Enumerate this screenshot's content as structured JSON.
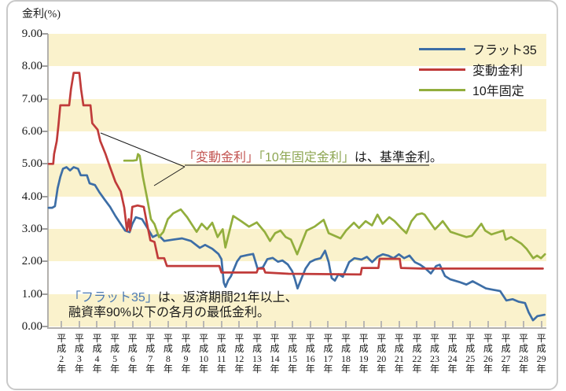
{
  "y_axis": {
    "title": "金利(%)",
    "tick_labels": [
      "9.00",
      "8.00",
      "7.00",
      "6.00",
      "5.00",
      "4.00",
      "3.00",
      "2.00",
      "1.00",
      "0.00"
    ],
    "min": 0,
    "max": 9
  },
  "x_axis": {
    "labels": [
      "平成2年",
      "平成3年",
      "平成4年",
      "平成5年",
      "平成6年",
      "平成7年",
      "平成8年",
      "平成9年",
      "平成10年",
      "平成11年",
      "平成12年",
      "平成13年",
      "平成14年",
      "平成15年",
      "平成16年",
      "平成17年",
      "平成18年",
      "平成19年",
      "平成20年",
      "平成21年",
      "平成22年",
      "平成23年",
      "平成24年",
      "平成25年",
      "平成26年",
      "平成27年",
      "平成28年",
      "平成29年"
    ]
  },
  "legend": {
    "items": [
      {
        "label": "フラット35",
        "color": "#3d6ea6"
      },
      {
        "label": "変動金利",
        "color": "#c03b3a"
      },
      {
        "label": "10年固定",
        "color": "#92ae3d"
      }
    ]
  },
  "annotations": {
    "standard_rate_note": {
      "parts": [
        {
          "text": "「変動金利」",
          "color": "#c25350"
        },
        {
          "text": "「10年固定金利」",
          "color": "#8ca550"
        },
        {
          "text": "は、基準金利。",
          "color": "#1a1a1a"
        }
      ]
    },
    "flat35_note": {
      "line1_parts": [
        {
          "text": "「フラット35」",
          "color": "#4b79b3"
        },
        {
          "text": "は、返済期間21年以上、",
          "color": "#1a1a1a"
        }
      ],
      "line2": "融資率90%以下の各月の最低金利。"
    }
  },
  "colors": {
    "band_cream": "#faf2cc",
    "band_white": "#ffffff",
    "axis": "#b3b1ad",
    "frame": "#c9c9c9",
    "leader_line": "#1a1a1a"
  },
  "chart_data": {
    "type": "line",
    "ylabel": "金利(%)",
    "ylim": [
      0,
      9
    ],
    "y_tick_step": 1,
    "grid": false,
    "background": "alternating cream/white horizontal bands per 1.00%",
    "legend_position": "top-right",
    "x_unit": "years since 平成2年1月 (0 = 平成2年, 28 = end of 平成29年)",
    "x_categories": [
      "平成2年",
      "平成3年",
      "平成4年",
      "平成5年",
      "平成6年",
      "平成7年",
      "平成8年",
      "平成9年",
      "平成10年",
      "平成11年",
      "平成12年",
      "平成13年",
      "平成14年",
      "平成15年",
      "平成16年",
      "平成17年",
      "平成18年",
      "平成19年",
      "平成20年",
      "平成21年",
      "平成22年",
      "平成23年",
      "平成24年",
      "平成25年",
      "平成26年",
      "平成27年",
      "平成28年",
      "平成29年"
    ],
    "series": [
      {
        "name": "フラット35",
        "color": "#3d6ea6",
        "points": [
          [
            0,
            3.65
          ],
          [
            0.2,
            3.65
          ],
          [
            0.35,
            3.7
          ],
          [
            0.5,
            4.25
          ],
          [
            0.65,
            4.6
          ],
          [
            0.8,
            4.85
          ],
          [
            1,
            4.9
          ],
          [
            1.2,
            4.8
          ],
          [
            1.4,
            4.9
          ],
          [
            1.65,
            4.85
          ],
          [
            1.8,
            4.65
          ],
          [
            2.15,
            4.65
          ],
          [
            2.3,
            4.4
          ],
          [
            2.6,
            4.35
          ],
          [
            2.85,
            4.13
          ],
          [
            3.15,
            3.9
          ],
          [
            3.45,
            3.68
          ],
          [
            3.75,
            3.4
          ],
          [
            4.05,
            3.15
          ],
          [
            4.3,
            2.95
          ],
          [
            4.55,
            2.9
          ],
          [
            4.7,
            3.15
          ],
          [
            4.9,
            3.36
          ],
          [
            5.25,
            3.3
          ],
          [
            5.55,
            3.03
          ],
          [
            5.85,
            2.75
          ],
          [
            6.15,
            2.83
          ],
          [
            6.5,
            2.63
          ],
          [
            7,
            2.67
          ],
          [
            7.5,
            2.71
          ],
          [
            8,
            2.63
          ],
          [
            8.5,
            2.42
          ],
          [
            8.8,
            2.51
          ],
          [
            9.2,
            2.39
          ],
          [
            9.55,
            2.23
          ],
          [
            9.72,
            2.07
          ],
          [
            9.85,
            1.35
          ],
          [
            9.95,
            1.22
          ],
          [
            10.1,
            1.42
          ],
          [
            10.25,
            1.54
          ],
          [
            10.6,
            2
          ],
          [
            10.8,
            2.15
          ],
          [
            11.2,
            2.2
          ],
          [
            11.5,
            2.23
          ],
          [
            11.75,
            1.78
          ],
          [
            12.05,
            1.82
          ],
          [
            12.3,
            2.07
          ],
          [
            12.6,
            2.11
          ],
          [
            12.9,
            1.99
          ],
          [
            13.15,
            2.03
          ],
          [
            13.45,
            1.91
          ],
          [
            13.7,
            1.7
          ],
          [
            13.85,
            1.46
          ],
          [
            14,
            1.17
          ],
          [
            14.2,
            1.45
          ],
          [
            14.45,
            1.78
          ],
          [
            14.7,
            1.98
          ],
          [
            15,
            2.06
          ],
          [
            15.3,
            2.1
          ],
          [
            15.55,
            2.33
          ],
          [
            15.75,
            1.98
          ],
          [
            15.92,
            1.49
          ],
          [
            16.1,
            1.41
          ],
          [
            16.3,
            1.61
          ],
          [
            16.55,
            1.53
          ],
          [
            16.9,
            1.98
          ],
          [
            17.2,
            2.1
          ],
          [
            17.6,
            2.06
          ],
          [
            17.9,
            2.14
          ],
          [
            18.2,
            1.98
          ],
          [
            18.5,
            2.14
          ],
          [
            18.8,
            2.22
          ],
          [
            19.1,
            2.18
          ],
          [
            19.4,
            2.1
          ],
          [
            19.7,
            2.22
          ],
          [
            20,
            2.1
          ],
          [
            20.3,
            2.18
          ],
          [
            20.6,
            1.98
          ],
          [
            20.9,
            1.9
          ],
          [
            21.2,
            1.78
          ],
          [
            21.5,
            1.63
          ],
          [
            21.8,
            1.86
          ],
          [
            22,
            1.9
          ],
          [
            22.3,
            1.55
          ],
          [
            22.6,
            1.45
          ],
          [
            23.1,
            1.37
          ],
          [
            23.5,
            1.29
          ],
          [
            23.85,
            1.39
          ],
          [
            24.2,
            1.29
          ],
          [
            24.6,
            1.17
          ],
          [
            25,
            1.13
          ],
          [
            25.4,
            1.09
          ],
          [
            25.75,
            0.8
          ],
          [
            26.1,
            0.84
          ],
          [
            26.45,
            0.76
          ],
          [
            26.8,
            0.72
          ],
          [
            27,
            0.44
          ],
          [
            27.25,
            0.19
          ],
          [
            27.5,
            0.32
          ],
          [
            27.9,
            0.36
          ]
        ]
      },
      {
        "name": "変動金利",
        "color": "#c03b3a",
        "points": [
          [
            0,
            5
          ],
          [
            0.25,
            5
          ],
          [
            0.3,
            5.3
          ],
          [
            0.45,
            5.7
          ],
          [
            0.55,
            6.2
          ],
          [
            0.65,
            6.8
          ],
          [
            1.15,
            6.8
          ],
          [
            1.25,
            7.3
          ],
          [
            1.4,
            7.8
          ],
          [
            1.72,
            7.8
          ],
          [
            1.82,
            7.3
          ],
          [
            1.95,
            6.8
          ],
          [
            2.35,
            6.8
          ],
          [
            2.45,
            6.25
          ],
          [
            2.75,
            6.05
          ],
          [
            2.9,
            5.7
          ],
          [
            3.2,
            5.3
          ],
          [
            3.45,
            4.9
          ],
          [
            3.75,
            4.45
          ],
          [
            4.05,
            4.15
          ],
          [
            4.25,
            3.65
          ],
          [
            4.4,
            2.95
          ],
          [
            4.5,
            3.3
          ],
          [
            4.58,
            2.95
          ],
          [
            4.7,
            3.68
          ],
          [
            5,
            3.72
          ],
          [
            5.35,
            3.68
          ],
          [
            5.5,
            3.25
          ],
          [
            5.72,
            2.65
          ],
          [
            5.95,
            2.6
          ],
          [
            6.15,
            2.1
          ],
          [
            6.5,
            2.1
          ],
          [
            6.65,
            1.86
          ],
          [
            9.6,
            1.86
          ],
          [
            9.72,
            1.66
          ],
          [
            11.7,
            1.66
          ],
          [
            11.78,
            1.78
          ],
          [
            12.1,
            1.78
          ],
          [
            12.18,
            1.66
          ],
          [
            13.5,
            1.62
          ],
          [
            17.55,
            1.6
          ],
          [
            17.62,
            1.8
          ],
          [
            18.55,
            1.8
          ],
          [
            18.62,
            2.08
          ],
          [
            19.75,
            2.08
          ],
          [
            19.82,
            1.8
          ],
          [
            21,
            1.78
          ],
          [
            27.8,
            1.78
          ]
        ]
      },
      {
        "name": "10年固定",
        "color": "#92ae3d",
        "points": [
          [
            4.25,
            5.1
          ],
          [
            4.75,
            5.1
          ],
          [
            4.95,
            5.12
          ],
          [
            5.02,
            5.3
          ],
          [
            5.12,
            5.25
          ],
          [
            5.3,
            4.6
          ],
          [
            5.55,
            3.9
          ],
          [
            5.75,
            3.3
          ],
          [
            5.95,
            3.15
          ],
          [
            6.2,
            2.75
          ],
          [
            6.45,
            2.91
          ],
          [
            6.7,
            3.3
          ],
          [
            7,
            3.48
          ],
          [
            7.43,
            3.6
          ],
          [
            7.79,
            3.36
          ],
          [
            8.32,
            2.91
          ],
          [
            8.61,
            3.16
          ],
          [
            8.91,
            2.99
          ],
          [
            9.2,
            3.19
          ],
          [
            9.5,
            2.75
          ],
          [
            9.79,
            2.99
          ],
          [
            9.94,
            2.43
          ],
          [
            10.38,
            3.4
          ],
          [
            10.83,
            3.24
          ],
          [
            11.27,
            3.07
          ],
          [
            11.71,
            3.2
          ],
          [
            12.15,
            2.91
          ],
          [
            12.45,
            2.63
          ],
          [
            12.74,
            2.87
          ],
          [
            13.04,
            2.95
          ],
          [
            13.33,
            2.75
          ],
          [
            13.63,
            2.67
          ],
          [
            13.98,
            2.22
          ],
          [
            14.51,
            2.95
          ],
          [
            14.96,
            3.07
          ],
          [
            15.47,
            3.28
          ],
          [
            15.75,
            2.87
          ],
          [
            16.42,
            2.71
          ],
          [
            16.73,
            2.95
          ],
          [
            17.17,
            3.19
          ],
          [
            17.46,
            3.03
          ],
          [
            17.83,
            3.24
          ],
          [
            18.19,
            3.11
          ],
          [
            18.5,
            3.44
          ],
          [
            18.79,
            3.16
          ],
          [
            19.16,
            3.36
          ],
          [
            19.46,
            3.24
          ],
          [
            19.82,
            3.03
          ],
          [
            20.12,
            2.87
          ],
          [
            20.41,
            3.24
          ],
          [
            20.71,
            3.44
          ],
          [
            21,
            3.48
          ],
          [
            21.15,
            3.44
          ],
          [
            21.73,
            2.99
          ],
          [
            21.95,
            3.11
          ],
          [
            22.17,
            3.24
          ],
          [
            22.61,
            2.91
          ],
          [
            23.05,
            2.83
          ],
          [
            23.5,
            2.75
          ],
          [
            23.81,
            2.79
          ],
          [
            24.34,
            3.16
          ],
          [
            24.56,
            2.95
          ],
          [
            24.91,
            2.83
          ],
          [
            25.13,
            2.87
          ],
          [
            25.58,
            2.95
          ],
          [
            25.71,
            2.67
          ],
          [
            26.02,
            2.75
          ],
          [
            26.24,
            2.67
          ],
          [
            26.59,
            2.55
          ],
          [
            26.9,
            2.38
          ],
          [
            27.26,
            2.1
          ],
          [
            27.48,
            2.18
          ],
          [
            27.7,
            2.1
          ],
          [
            27.92,
            2.22
          ]
        ]
      }
    ]
  }
}
